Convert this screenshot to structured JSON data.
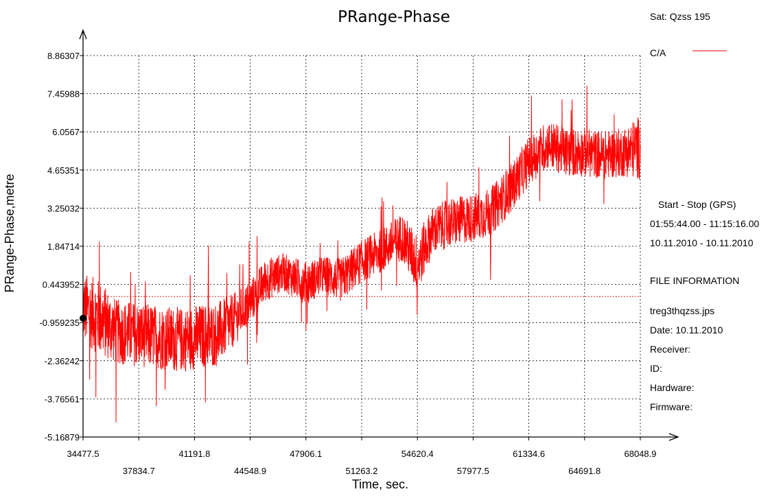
{
  "chart_data": {
    "type": "line",
    "title": "PRange-Phase",
    "xlabel": "Time, sec.",
    "ylabel": "PRange-Phase,metre",
    "xlim": [
      34477.5,
      68048.9
    ],
    "ylim": [
      -5.16879,
      8.86307
    ],
    "x_ticks_top": [
      "34477.5",
      "41191.8",
      "47906.1",
      "54620.4",
      "61334.6",
      "68048.9"
    ],
    "x_ticks_bottom": [
      "37834.7",
      "44548.9",
      "51263.2",
      "57977.5",
      "64691.8"
    ],
    "x_tick_values": [
      34477.5,
      37834.7,
      41191.8,
      44548.9,
      47906.1,
      51263.2,
      54620.4,
      57977.5,
      61334.6,
      64691.8,
      68048.9
    ],
    "y_ticks": [
      "8.86307",
      "7.45988",
      "6.0567",
      "4.65351",
      "3.25032",
      "1.84714",
      "0.443952",
      "-0.959235",
      "-2.36242",
      "-3.76561",
      "-5.16879"
    ],
    "y_tick_values": [
      8.86307,
      7.45988,
      6.0567,
      4.65351,
      3.25032,
      1.84714,
      0.443952,
      -0.959235,
      -2.36242,
      -3.76561,
      -5.16879
    ],
    "grid": true,
    "reference_line_y": 0.0,
    "marker_point": {
      "x": 34477.5,
      "y": -0.8
    },
    "series": [
      {
        "name": "C/A",
        "color": "#ff0000",
        "x": [
          34477.5,
          35500,
          36500,
          37834.7,
          39000,
          40500,
          41191.8,
          42500,
          43500,
          44548.9,
          45500,
          46500,
          47906.1,
          49000,
          50000,
          51263.2,
          52500,
          53700,
          54620.4,
          55500,
          56500,
          57977.5,
          59000,
          60300,
          61334.6,
          62500,
          63600,
          64691.8,
          65800,
          67000,
          68048.9
        ],
        "mean": [
          -0.4,
          -0.8,
          -1.3,
          -1.4,
          -1.5,
          -1.6,
          -1.5,
          -1.4,
          -0.9,
          -0.2,
          0.6,
          0.9,
          0.5,
          0.8,
          0.6,
          1.3,
          1.7,
          2.2,
          1.2,
          2.4,
          2.7,
          2.9,
          3.1,
          4.0,
          5.0,
          5.6,
          5.3,
          5.3,
          5.2,
          5.3,
          5.5
        ],
        "spread": [
          1.3,
          1.4,
          1.2,
          1.2,
          1.2,
          1.2,
          1.2,
          1.2,
          1.0,
          0.8,
          0.8,
          0.7,
          0.8,
          0.7,
          0.8,
          0.8,
          0.8,
          0.9,
          1.1,
          0.9,
          0.9,
          0.9,
          0.9,
          0.9,
          0.9,
          0.9,
          0.9,
          0.9,
          0.9,
          0.9,
          1.2
        ]
      }
    ]
  },
  "side": {
    "sat": "Sat: Qzss  195",
    "legend_label": "C/A",
    "start_stop_header": "Start  -  Stop  (GPS)",
    "time_range": "01:55:44.00 - 11:15:16.00",
    "date_range": "10.11.2010 - 10.11.2010",
    "file_info_header": "FILE INFORMATION",
    "filename": "treg3thqzss.jps",
    "date": "Date: 10.11.2010",
    "receiver": "Receiver:",
    "id": "ID:",
    "hardware": "Hardware:",
    "firmware": "Firmware:"
  }
}
